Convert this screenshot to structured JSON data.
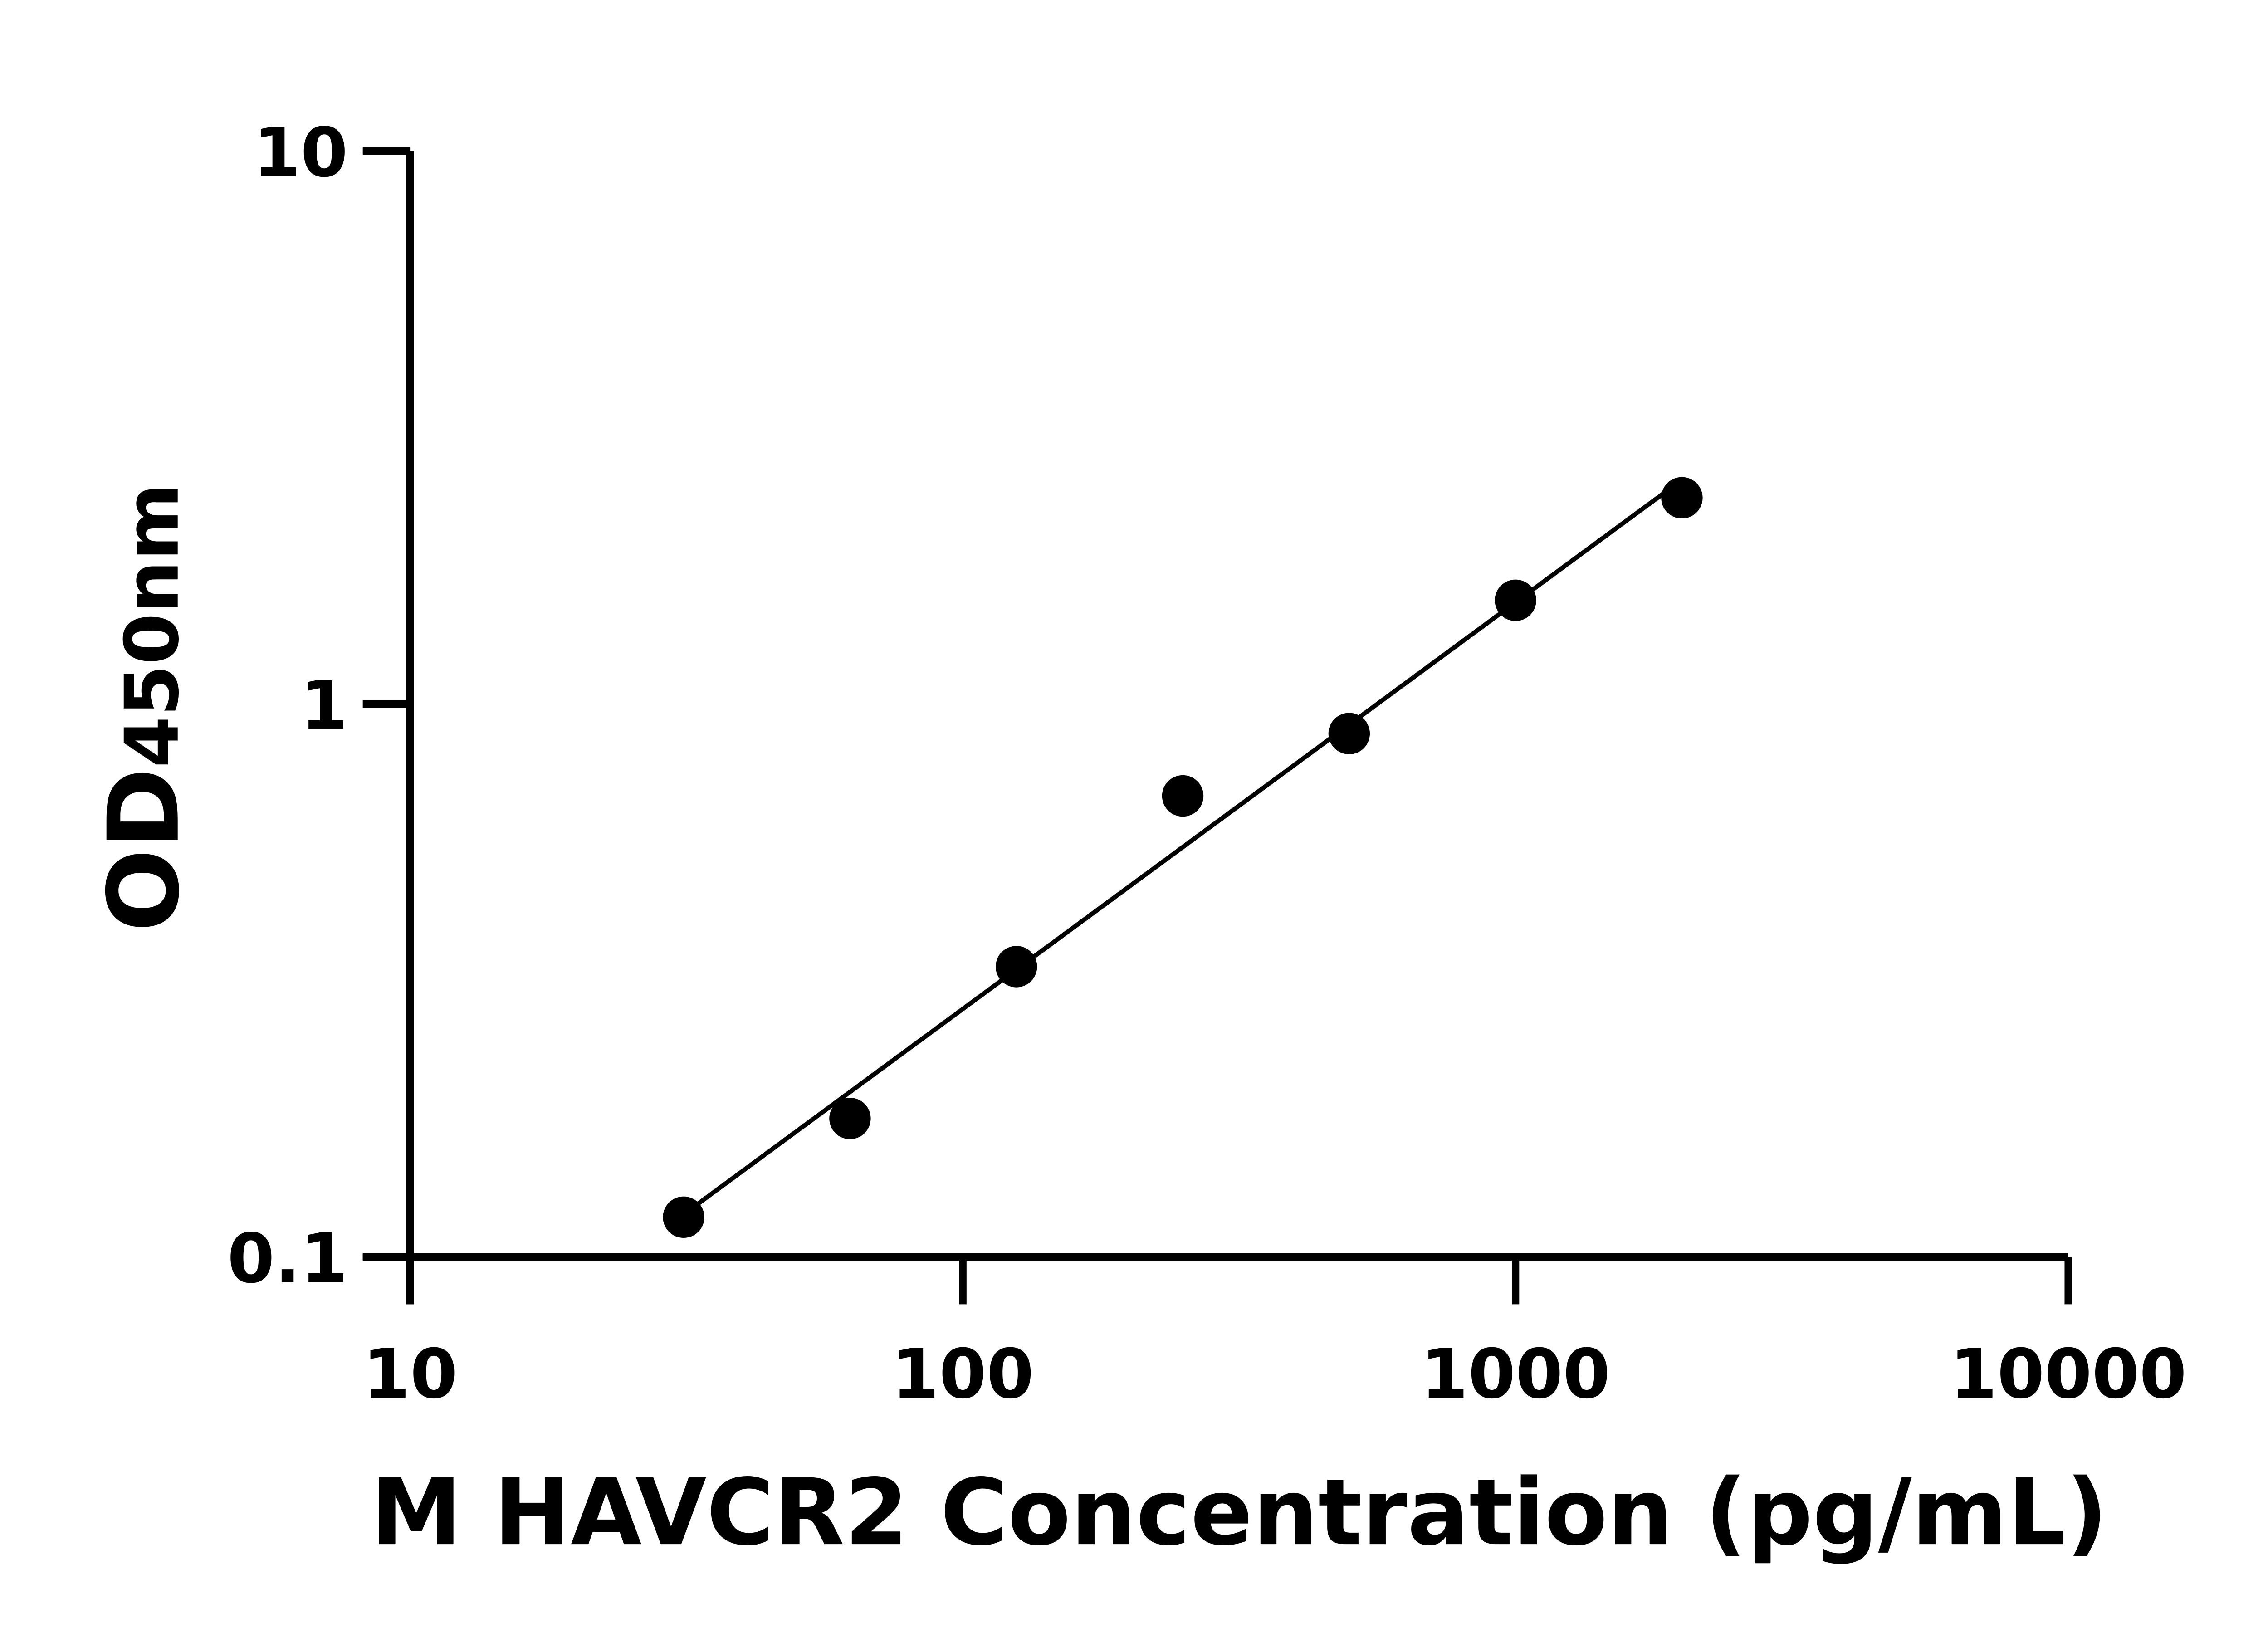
{
  "chart_data": {
    "type": "scatter",
    "title": "",
    "xlabel": "M HAVCR2 Concentration (pg/mL)",
    "ylabel_main": "OD",
    "ylabel_sub": "450nm",
    "x_scale": "log",
    "y_scale": "log",
    "xlim": [
      10,
      10000
    ],
    "ylim": [
      0.1,
      10
    ],
    "x_ticks": [
      "10",
      "100",
      "1000",
      "10000"
    ],
    "y_ticks": [
      "0.1",
      "1",
      "10"
    ],
    "grid": false,
    "legend": "none",
    "fit_line": true,
    "marker_color": "#000000",
    "line_color": "#000000",
    "series": [
      {
        "x": [
          31.25,
          62.5,
          125,
          250,
          500,
          1000,
          2000
        ],
        "y": [
          0.118,
          0.178,
          0.335,
          0.682,
          0.884,
          1.54,
          2.36
        ]
      }
    ]
  }
}
